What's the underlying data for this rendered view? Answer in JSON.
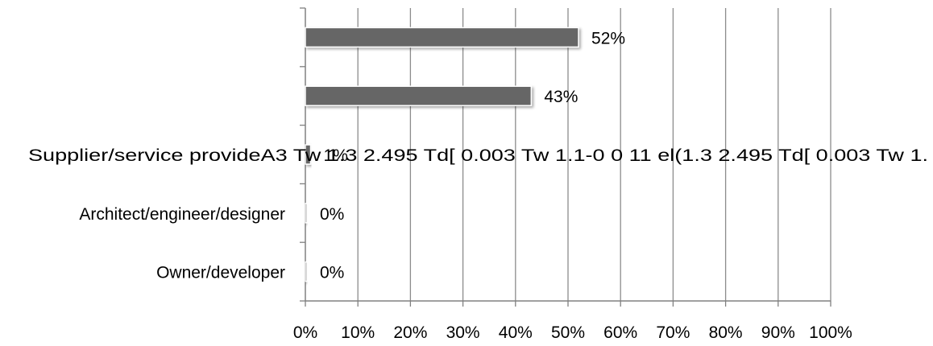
{
  "chart_data": {
    "type": "bar",
    "orientation": "horizontal",
    "categories": [
      "",
      "",
      "Supplier/service provideA3 Tw 1.3 2.495 Td[ 0.003 Tw 1.1-0 0 11  el(1.3 2.495 Td[ 0.003 Tw 1.",
      "Architect/engineer/designer",
      "Owner/developer"
    ],
    "values": [
      52,
      43,
      1,
      0,
      0
    ],
    "data_labels": [
      "52%",
      "43%",
      "1%",
      "0%",
      "0%"
    ],
    "x_ticks": [
      "0%",
      "10%",
      "20%",
      "30%",
      "40%",
      "50%",
      "60%",
      "70%",
      "80%",
      "90%",
      "100%"
    ],
    "xlim": [
      0,
      100
    ],
    "grid": true,
    "bar_color": "#666666",
    "gridline_color": "#8c8c8c",
    "title": "",
    "xlabel": "",
    "ylabel": ""
  }
}
